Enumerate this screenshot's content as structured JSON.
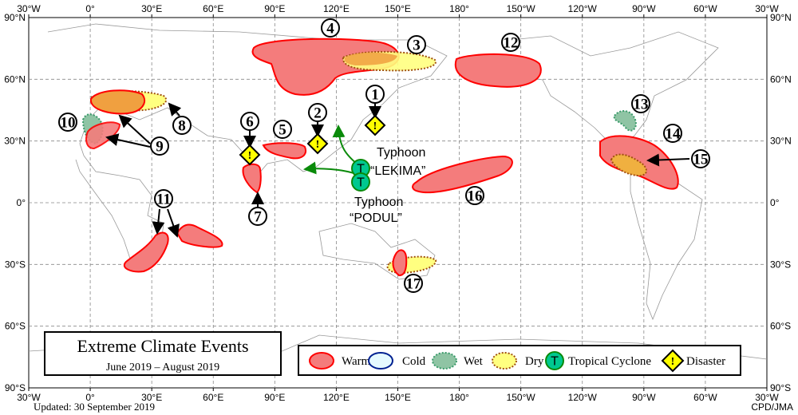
{
  "title": "Extreme Climate Events",
  "period": "June  2019 – August  2019",
  "updated": "Updated:  30 September 2019",
  "credit": "CPD/JMA",
  "lon_labels": [
    "30°W",
    "0°",
    "30°E",
    "60°E",
    "90°E",
    "120°E",
    "150°E",
    "180°",
    "150°W",
    "120°W",
    "90°W",
    "60°W",
    "30°W"
  ],
  "lat_labels": [
    "90°N",
    "60°N",
    "30°N",
    "0°",
    "30°S",
    "60°S",
    "90°S"
  ],
  "legend": {
    "warm": "Warm",
    "cold": "Cold",
    "wet": "Wet",
    "dry": "Dry",
    "tc": "Tropical  Cyclone",
    "disaster": "Disaster",
    "tc_symbol": "T",
    "disaster_symbol": "!"
  },
  "typhoons": [
    {
      "label1": "Typhoon",
      "label2": "“LEKIMA”"
    },
    {
      "label1": "Typhoon",
      "label2": "“PODUL”"
    }
  ],
  "event_numbers": [
    "1",
    "2",
    "3",
    "4",
    "5",
    "6",
    "7",
    "8",
    "9",
    "10",
    "11",
    "12",
    "13",
    "14",
    "15",
    "16",
    "17"
  ],
  "colors": {
    "warm_fill": "#f47c7c",
    "warm_stroke": "#ff0000",
    "cold_fill": "#e6faff",
    "cold_stroke": "#002090",
    "wet_fill": "#8fc4a4",
    "wet_stroke": "#3a9a6a",
    "dry_fill": "#ffff80",
    "dry_stroke": "#a05010",
    "tc_fill": "#00c890",
    "disaster_fill": "#ffff00",
    "track": "#0a8a0a"
  }
}
